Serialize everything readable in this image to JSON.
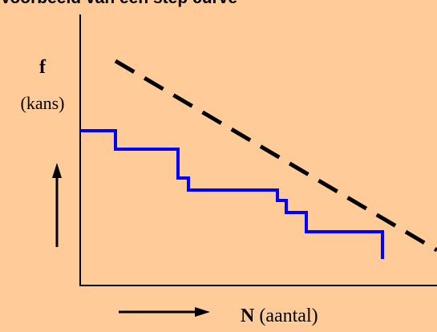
{
  "header": {
    "cut_title": "Voorbeeld van een step curve"
  },
  "y_axis": {
    "symbol": "f",
    "meaning": "(kans)"
  },
  "x_axis": {
    "symbol": "N",
    "meaning": " (aantal)"
  },
  "colors": {
    "background": "#ffcc99",
    "step_curve": "#0000ff",
    "dashed_line": "#000000",
    "axes": "#000000"
  },
  "icons": {
    "up_arrow": "arrow-up-icon",
    "right_arrow": "arrow-right-icon"
  }
}
